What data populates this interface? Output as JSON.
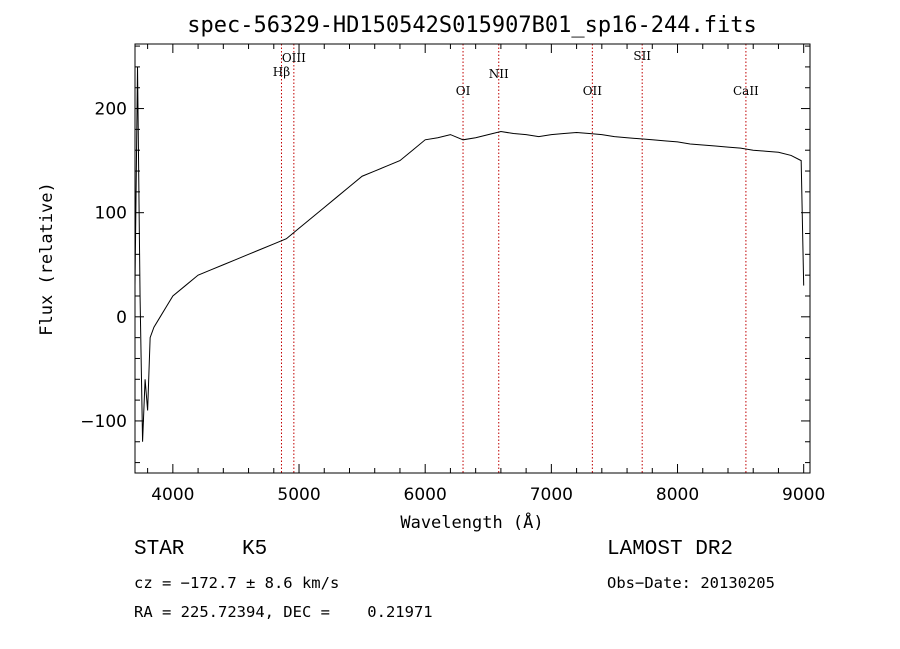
{
  "chart_data": {
    "type": "line",
    "title": "spec-56329-HD150542S015907B01_sp16-244.fits",
    "xlabel": "Wavelength (Å)",
    "ylabel": "Flux (relative)",
    "xlim": [
      3700,
      9050
    ],
    "ylim": [
      -150,
      262
    ],
    "x_ticks": [
      4000,
      5000,
      6000,
      7000,
      8000,
      9000
    ],
    "y_ticks": [
      -100,
      0,
      100,
      200
    ],
    "grid": false,
    "series": [
      {
        "x": [
          3700,
          3720,
          3740,
          3760,
          3780,
          3800,
          3820,
          3850,
          3900,
          3950,
          4000,
          4100,
          4200,
          4300,
          4400,
          4500,
          4600,
          4700,
          4800,
          4900,
          5000,
          5100,
          5200,
          5300,
          5400,
          5500,
          5600,
          5700,
          5800,
          5900,
          6000,
          6100,
          6200,
          6300,
          6400,
          6500,
          6600,
          6700,
          6800,
          6900,
          7000,
          7100,
          7200,
          7300,
          7400,
          7500,
          7600,
          7700,
          7800,
          7900,
          8000,
          8100,
          8200,
          8300,
          8400,
          8500,
          8600,
          8700,
          8800,
          8900,
          8980,
          9000
        ],
        "y": [
          30,
          240,
          20,
          -120,
          -60,
          -90,
          -20,
          -10,
          0,
          10,
          20,
          30,
          40,
          45,
          50,
          55,
          60,
          65,
          70,
          75,
          85,
          95,
          105,
          115,
          125,
          135,
          140,
          145,
          150,
          160,
          170,
          172,
          175,
          170,
          172,
          175,
          178,
          176,
          175,
          173,
          175,
          176,
          177,
          176,
          175,
          173,
          172,
          171,
          170,
          169,
          168,
          166,
          165,
          164,
          163,
          162,
          160,
          159,
          158,
          155,
          150,
          30
        ]
      }
    ],
    "lines": [
      {
        "label": "Hβ",
        "x": 4861
      },
      {
        "label": "OIII",
        "x": 4959
      },
      {
        "label": "OI",
        "x": 6300
      },
      {
        "label": "NII",
        "x": 6583
      },
      {
        "label": "OII",
        "x": 7325
      },
      {
        "label": "SII",
        "x": 7720
      },
      {
        "label": "CaII",
        "x": 8542
      }
    ],
    "line_color": "#000000",
    "marker_color": "#c00000"
  },
  "info": {
    "class_label": "STAR",
    "subclass_label": "K5",
    "survey": "LAMOST DR2",
    "cz": "cz = −172.7 ± 8.6 km/s",
    "obs_date": "Obs−Date: 20130205",
    "coords": "RA = 225.72394, DEC =    0.21971"
  }
}
